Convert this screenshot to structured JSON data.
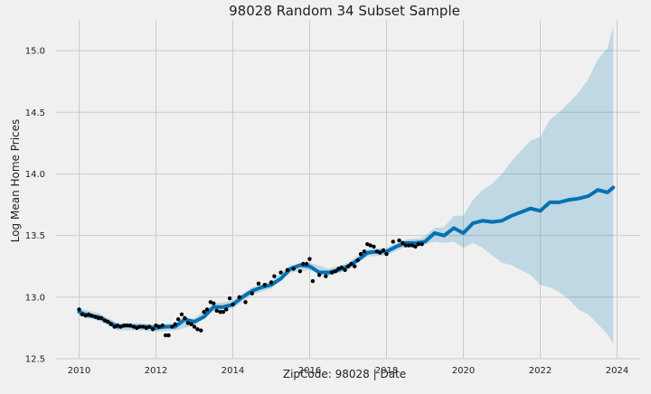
{
  "colors": {
    "background": "#f0f0f0",
    "grid": "#cbcbcb",
    "forecast_line": "#0072b2",
    "uncertainty_band": "#0072b2",
    "observed_points": "#000000",
    "text": "#222222"
  },
  "chart_data": {
    "type": "line",
    "title": "98028 Random 34 Subset Sample",
    "xlabel": "ZipCode: 98028 | Date",
    "ylabel": "Log Mean Home Prices",
    "xlim": [
      2009.4,
      2024.6
    ],
    "ylim": [
      12.5,
      15.25
    ],
    "x_ticks": [
      2010,
      2012,
      2014,
      2016,
      2018,
      2020,
      2022,
      2024
    ],
    "x_tick_labels": [
      "2010",
      "2012",
      "2014",
      "2016",
      "2018",
      "2020",
      "2022",
      "2024"
    ],
    "y_ticks": [
      12.5,
      13.0,
      13.5,
      14.0,
      14.5,
      15.0
    ],
    "y_tick_labels": [
      "12.5",
      "13.0",
      "13.5",
      "14.0",
      "14.5",
      "15.0"
    ],
    "grid": true,
    "series": [
      {
        "kind": "scatter",
        "x": [
          2010.0,
          2010.08,
          2010.17,
          2010.25,
          2010.33,
          2010.42,
          2010.5,
          2010.58,
          2010.67,
          2010.75,
          2010.83,
          2010.92,
          2011.0,
          2011.08,
          2011.17,
          2011.25,
          2011.33,
          2011.42,
          2011.5,
          2011.58,
          2011.67,
          2011.75,
          2011.83,
          2011.92,
          2012.0,
          2012.08,
          2012.17,
          2012.25,
          2012.33,
          2012.42,
          2012.5,
          2012.58,
          2012.67,
          2012.75,
          2012.83,
          2012.92,
          2013.0,
          2013.08,
          2013.17,
          2013.25,
          2013.33,
          2013.42,
          2013.5,
          2013.58,
          2013.67,
          2013.75,
          2013.83,
          2013.92,
          2014.0,
          2014.17,
          2014.33,
          2014.5,
          2014.67,
          2014.83,
          2015.0,
          2015.08,
          2015.25,
          2015.42,
          2015.58,
          2015.75,
          2015.83,
          2015.92,
          2016.0,
          2016.08,
          2016.25,
          2016.42,
          2016.58,
          2016.67,
          2016.75,
          2016.83,
          2016.92,
          2017.0,
          2017.08,
          2017.17,
          2017.25,
          2017.33,
          2017.42,
          2017.5,
          2017.58,
          2017.67,
          2017.75,
          2017.83,
          2017.92,
          2018.0,
          2018.17,
          2018.33,
          2018.42,
          2018.5,
          2018.58,
          2018.67,
          2018.75,
          2018.83,
          2018.92
        ],
        "y": [
          12.9,
          12.86,
          12.85,
          12.86,
          12.85,
          12.84,
          12.83,
          12.83,
          12.81,
          12.8,
          12.78,
          12.76,
          12.77,
          12.76,
          12.77,
          12.77,
          12.77,
          12.76,
          12.75,
          12.76,
          12.76,
          12.75,
          12.76,
          12.74,
          12.77,
          12.76,
          12.77,
          12.69,
          12.69,
          12.76,
          12.78,
          12.82,
          12.86,
          12.83,
          12.79,
          12.78,
          12.76,
          12.74,
          12.73,
          12.88,
          12.9,
          12.96,
          12.95,
          12.89,
          12.88,
          12.88,
          12.9,
          12.99,
          12.94,
          13.0,
          12.96,
          13.03,
          13.11,
          13.1,
          13.12,
          13.17,
          13.2,
          13.22,
          13.23,
          13.21,
          13.27,
          13.27,
          13.31,
          13.13,
          13.18,
          13.17,
          13.2,
          13.21,
          13.23,
          13.24,
          13.22,
          13.25,
          13.27,
          13.25,
          13.3,
          13.35,
          13.37,
          13.43,
          13.42,
          13.41,
          13.37,
          13.36,
          13.38,
          13.35,
          13.45,
          13.46,
          13.44,
          13.42,
          13.42,
          13.42,
          13.41,
          13.43,
          13.43
        ]
      },
      {
        "kind": "line",
        "x": [
          2010.0,
          2010.25,
          2010.5,
          2010.75,
          2011.0,
          2011.25,
          2011.5,
          2011.75,
          2012.0,
          2012.25,
          2012.5,
          2012.75,
          2013.0,
          2013.25,
          2013.5,
          2013.75,
          2014.0,
          2014.25,
          2014.5,
          2014.75,
          2015.0,
          2015.25,
          2015.5,
          2015.75,
          2016.0,
          2016.25,
          2016.5,
          2016.75,
          2017.0,
          2017.25,
          2017.5,
          2017.75,
          2018.0,
          2018.25,
          2018.5,
          2018.75,
          2019.0,
          2019.25,
          2019.5,
          2019.75,
          2020.0,
          2020.25,
          2020.5,
          2020.75,
          2021.0,
          2021.25,
          2021.5,
          2021.75,
          2022.0,
          2022.25,
          2022.5,
          2022.75,
          2023.0,
          2023.25,
          2023.5,
          2023.75,
          2023.9
        ],
        "y": [
          12.88,
          12.85,
          12.84,
          12.8,
          12.76,
          12.77,
          12.76,
          12.76,
          12.75,
          12.76,
          12.76,
          12.82,
          12.8,
          12.84,
          12.92,
          12.92,
          12.94,
          13.0,
          13.05,
          13.08,
          13.1,
          13.15,
          13.23,
          13.26,
          13.25,
          13.2,
          13.2,
          13.22,
          13.25,
          13.3,
          13.36,
          13.37,
          13.37,
          13.41,
          13.44,
          13.44,
          13.45,
          13.52,
          13.5,
          13.56,
          13.52,
          13.6,
          13.62,
          13.61,
          13.62,
          13.66,
          13.69,
          13.72,
          13.7,
          13.77,
          13.77,
          13.79,
          13.8,
          13.82,
          13.87,
          13.85,
          13.89
        ]
      },
      {
        "kind": "band",
        "x": [
          2010.0,
          2010.5,
          2011.0,
          2011.5,
          2012.0,
          2012.5,
          2013.0,
          2013.5,
          2014.0,
          2014.5,
          2015.0,
          2015.5,
          2016.0,
          2016.5,
          2017.0,
          2017.5,
          2018.0,
          2018.5,
          2018.92,
          2019.25,
          2019.5,
          2019.75,
          2020.0,
          2020.25,
          2020.5,
          2020.75,
          2021.0,
          2021.25,
          2021.5,
          2021.75,
          2022.0,
          2022.25,
          2022.5,
          2022.75,
          2023.0,
          2023.25,
          2023.5,
          2023.75,
          2023.9
        ],
        "upper": [
          12.91,
          12.87,
          12.79,
          12.79,
          12.78,
          12.79,
          12.83,
          12.95,
          12.97,
          13.08,
          13.13,
          13.26,
          13.28,
          13.23,
          13.28,
          13.39,
          13.4,
          13.47,
          13.48,
          13.56,
          13.57,
          13.66,
          13.66,
          13.79,
          13.87,
          13.92,
          14.0,
          14.1,
          14.19,
          14.27,
          14.3,
          14.44,
          14.5,
          14.58,
          14.66,
          14.77,
          14.93,
          15.02,
          15.2
        ],
        "lower": [
          12.85,
          12.81,
          12.73,
          12.73,
          12.72,
          12.73,
          12.77,
          12.89,
          12.91,
          13.02,
          13.07,
          13.2,
          13.22,
          13.17,
          13.22,
          13.33,
          13.34,
          13.41,
          13.42,
          13.45,
          13.44,
          13.45,
          13.4,
          13.44,
          13.4,
          13.34,
          13.28,
          13.26,
          13.22,
          13.18,
          13.1,
          13.08,
          13.04,
          12.98,
          12.9,
          12.86,
          12.78,
          12.7,
          12.62
        ]
      }
    ]
  }
}
